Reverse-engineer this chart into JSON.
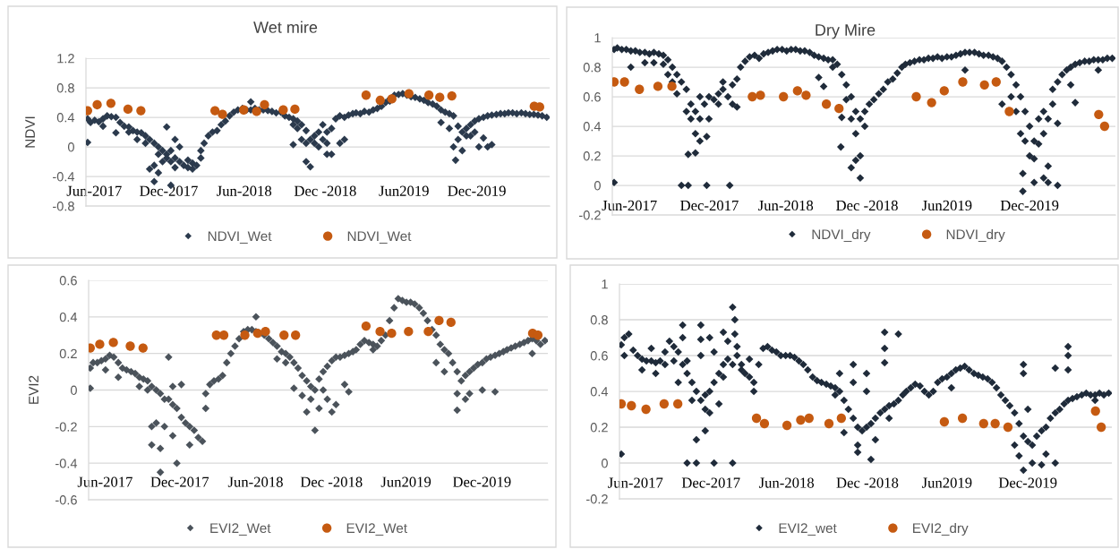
{
  "chart_data": [
    {
      "type": "scatter",
      "title": "Wet mire",
      "ylabel": "NDVI",
      "xlim": [
        "2017-05-21",
        "2020-06-08"
      ],
      "xticks": [
        {
          "value": "2017-06-10",
          "label": "Jun-2017"
        },
        {
          "value": "2017-12-06",
          "label": "Dec-2017"
        },
        {
          "value": "2018-06-05",
          "label": "Jun-2018"
        },
        {
          "value": "2018-12-17",
          "label": "Dec -2018"
        },
        {
          "value": "2019-06-24",
          "label": "Jun2019"
        },
        {
          "value": "2019-12-16",
          "label": "Dec-2019"
        }
      ],
      "ylim": [
        -0.8,
        1.2
      ],
      "yticks": [
        -0.8,
        -0.4,
        0,
        0.4,
        0.8,
        1.2
      ],
      "grid": "y",
      "legend": "bottom",
      "series": [
        {
          "name": "NDVI_Wet",
          "color": "#2b3a4d",
          "marker": "diamond",
          "x": [
            "2017-05-25",
            "2017-05-25",
            "2017-06-01",
            "2017-06-11",
            "2017-06-21",
            "2017-07-01",
            "2017-07-01",
            "2017-07-11",
            "2017-07-21",
            "2017-08-01",
            "2017-08-01",
            "2017-08-11",
            "2017-08-21",
            "2017-09-01",
            "2017-09-01",
            "2017-09-11",
            "2017-09-21",
            "2017-09-21",
            "2017-10-01",
            "2017-10-11",
            "2017-10-11",
            "2017-10-21",
            "2017-10-21",
            "2017-11-01",
            "2017-11-01",
            "2017-11-01",
            "2017-11-11",
            "2017-11-11",
            "2017-11-11",
            "2017-11-21",
            "2017-11-21",
            "2017-12-01",
            "2017-12-01",
            "2017-12-01",
            "2017-12-11",
            "2017-12-11",
            "2017-12-11",
            "2017-12-21",
            "2017-12-21",
            "2017-12-21",
            "2018-01-01",
            "2018-01-01",
            "2018-01-11",
            "2018-01-21",
            "2018-01-21",
            "2018-02-01",
            "2018-02-01",
            "2018-02-11",
            "2018-02-21",
            "2018-02-21",
            "2018-03-01",
            "2018-03-11",
            "2018-03-21",
            "2018-04-01",
            "2018-04-11",
            "2018-04-21",
            "2018-05-01",
            "2018-05-11",
            "2018-05-21",
            "2018-06-01",
            "2018-06-11",
            "2018-06-21",
            "2018-06-21",
            "2018-07-01",
            "2018-07-11",
            "2018-07-21",
            "2018-08-01",
            "2018-08-11",
            "2018-08-21",
            "2018-09-01",
            "2018-09-11",
            "2018-09-21",
            "2018-10-01",
            "2018-10-01",
            "2018-10-01",
            "2018-10-11",
            "2018-10-11",
            "2018-10-21",
            "2018-10-21",
            "2018-11-01",
            "2018-11-01",
            "2018-11-01",
            "2018-11-11",
            "2018-11-11",
            "2018-11-21",
            "2018-11-21",
            "2018-12-01",
            "2018-12-01",
            "2018-12-11",
            "2018-12-11",
            "2018-12-21",
            "2018-12-21",
            "2018-12-21",
            "2019-01-01",
            "2019-01-01",
            "2019-01-11",
            "2019-01-21",
            "2019-01-21",
            "2019-02-01",
            "2019-02-01",
            "2019-02-11",
            "2019-02-21",
            "2019-03-01",
            "2019-03-11",
            "2019-03-21",
            "2019-04-01",
            "2019-04-11",
            "2019-04-21",
            "2019-05-01",
            "2019-05-11",
            "2019-05-21",
            "2019-05-21",
            "2019-06-01",
            "2019-06-11",
            "2019-06-21",
            "2019-07-01",
            "2019-07-11",
            "2019-07-21",
            "2019-08-01",
            "2019-08-11",
            "2019-08-21",
            "2019-09-01",
            "2019-09-11",
            "2019-09-21",
            "2019-09-21",
            "2019-10-01",
            "2019-10-11",
            "2019-10-11",
            "2019-10-21",
            "2019-10-21",
            "2019-10-26",
            "2019-11-01",
            "2019-11-01",
            "2019-11-11",
            "2019-11-11",
            "2019-11-21",
            "2019-11-21",
            "2019-12-01",
            "2019-12-01",
            "2019-12-11",
            "2019-12-11",
            "2019-12-21",
            "2019-12-21",
            "2020-01-01",
            "2020-01-01",
            "2020-01-11",
            "2020-01-11",
            "2020-01-21",
            "2020-01-21",
            "2020-02-01",
            "2020-02-11",
            "2020-02-21",
            "2020-03-01",
            "2020-03-11",
            "2020-03-21",
            "2020-04-01",
            "2020-04-11",
            "2020-04-21",
            "2020-05-01",
            "2020-05-11",
            "2020-05-21",
            "2020-06-01"
          ],
          "values": [
            0.38,
            0.06,
            0.33,
            0.36,
            0.34,
            0.38,
            0.28,
            0.42,
            0.41,
            0.4,
            0.19,
            0.33,
            0.28,
            0.27,
            0.2,
            0.22,
            0.2,
            0.1,
            0.19,
            0.15,
            0.05,
            0.1,
            -0.3,
            0.05,
            -0.25,
            -0.47,
            0.0,
            -0.1,
            -0.35,
            -0.05,
            -0.2,
            -0.1,
            0.27,
            -0.15,
            -0.05,
            -0.2,
            -0.52,
            -0.15,
            0.1,
            -0.28,
            -0.2,
            0.0,
            -0.25,
            -0.28,
            -0.18,
            -0.3,
            -0.22,
            -0.25,
            -0.15,
            -0.05,
            0.05,
            0.15,
            0.2,
            0.22,
            0.3,
            0.35,
            0.42,
            0.47,
            0.5,
            0.52,
            0.5,
            0.5,
            0.61,
            0.52,
            0.5,
            0.5,
            0.49,
            0.48,
            0.46,
            0.47,
            0.42,
            0.4,
            0.38,
            0.03,
            0.3,
            0.35,
            0.25,
            0.3,
            0.1,
            0.22,
            -0.2,
            0.05,
            0.1,
            -0.27,
            0.05,
            0.15,
            0.2,
            0.0,
            0.3,
            0.1,
            0.2,
            -0.1,
            0.05,
            -0.1,
            0.25,
            0.38,
            0.05,
            0.42,
            0.1,
            0.4,
            0.43,
            0.45,
            0.46,
            0.45,
            0.48,
            0.47,
            0.5,
            0.52,
            0.55,
            0.6,
            0.65,
            0.62,
            0.7,
            0.71,
            0.72,
            0.7,
            0.68,
            0.67,
            0.65,
            0.63,
            0.6,
            0.58,
            0.55,
            0.5,
            0.33,
            0.47,
            0.45,
            0.25,
            0.42,
            0.0,
            -0.18,
            0.28,
            0.1,
            0.2,
            -0.05,
            0.15,
            0.25,
            0.3,
            0.15,
            0.35,
            0.2,
            0.38,
            0.0,
            0.4,
            0.12,
            0.42,
            0.0,
            0.43,
            0.03,
            0.44,
            0.45,
            0.45,
            0.46,
            0.46,
            0.45,
            0.46,
            0.45,
            0.44,
            0.44,
            0.43,
            0.42,
            0.4
          ]
        },
        {
          "name": "NDVI_Wet",
          "color": "#c55a11",
          "marker": "circle",
          "x": [
            "2017-05-25",
            "2017-06-17",
            "2017-07-20",
            "2017-08-30",
            "2017-09-30",
            "2018-03-27",
            "2018-04-14",
            "2018-06-04",
            "2018-07-05",
            "2018-07-24",
            "2018-09-07",
            "2018-10-05",
            "2019-03-25",
            "2019-04-28",
            "2019-05-26",
            "2019-07-06",
            "2019-08-23",
            "2019-09-18",
            "2019-10-17",
            "2020-05-02",
            "2020-05-15"
          ],
          "values": [
            0.49,
            0.57,
            0.59,
            0.51,
            0.49,
            0.49,
            0.44,
            0.5,
            0.48,
            0.57,
            0.5,
            0.51,
            0.7,
            0.63,
            0.65,
            0.72,
            0.7,
            0.67,
            0.69,
            0.55,
            0.54
          ]
        }
      ]
    },
    {
      "type": "scatter",
      "title": "Dry Mire",
      "xlim": [
        "2017-05-21",
        "2020-06-08"
      ],
      "xticks": [
        {
          "value": "2017-06-28",
          "label": "Jun-2017"
        },
        {
          "value": "2017-12-22",
          "label": "Dec-2017"
        },
        {
          "value": "2018-06-09",
          "label": "Jun-2018"
        },
        {
          "value": "2018-12-06",
          "label": "Dec -2018"
        },
        {
          "value": "2019-06-01",
          "label": "Jun2019"
        },
        {
          "value": "2019-12-01",
          "label": "Dec-2019"
        }
      ],
      "ylim": [
        -0.2,
        1
      ],
      "yticks": [
        -0.2,
        0,
        0.2,
        0.4,
        0.6,
        0.8,
        1
      ],
      "grid": "y",
      "legend": "bottom",
      "series": [
        {
          "name": "NDVI_dry",
          "color": "#1f2b3a",
          "marker": "diamond",
          "x": [
            "2017-05-25",
            "2017-05-25",
            "2017-06-01",
            "2017-06-11",
            "2017-06-21",
            "2017-07-01",
            "2017-07-01",
            "2017-07-11",
            "2017-07-21",
            "2017-08-01",
            "2017-08-01",
            "2017-08-11",
            "2017-08-21",
            "2017-08-21",
            "2017-09-01",
            "2017-09-11",
            "2017-09-11",
            "2017-09-21",
            "2017-09-21",
            "2017-10-01",
            "2017-10-01",
            "2017-10-11",
            "2017-10-11",
            "2017-10-21",
            "2017-10-21",
            "2017-11-01",
            "2017-11-01",
            "2017-11-05",
            "2017-11-05",
            "2017-11-11",
            "2017-11-11",
            "2017-11-21",
            "2017-11-21",
            "2017-11-21",
            "2017-12-01",
            "2017-12-01",
            "2017-12-01",
            "2017-12-11",
            "2017-12-16",
            "2017-12-16",
            "2017-12-21",
            "2017-12-21",
            "2018-01-01",
            "2018-01-11",
            "2018-01-11",
            "2018-01-21",
            "2018-01-21",
            "2018-02-01",
            "2018-02-05",
            "2018-02-11",
            "2018-02-11",
            "2018-02-21",
            "2018-02-21",
            "2018-03-01",
            "2018-03-11",
            "2018-03-21",
            "2018-04-01",
            "2018-04-11",
            "2018-04-21",
            "2018-05-01",
            "2018-05-11",
            "2018-05-21",
            "2018-06-01",
            "2018-06-11",
            "2018-06-21",
            "2018-07-01",
            "2018-07-11",
            "2018-07-21",
            "2018-08-01",
            "2018-08-11",
            "2018-08-21",
            "2018-08-21",
            "2018-09-01",
            "2018-09-01",
            "2018-09-11",
            "2018-09-21",
            "2018-09-21",
            "2018-10-01",
            "2018-10-09",
            "2018-10-11",
            "2018-10-11",
            "2018-10-21",
            "2018-10-21",
            "2018-11-01",
            "2018-11-01",
            "2018-11-01",
            "2018-11-11",
            "2018-11-11",
            "2018-11-11",
            "2018-11-21",
            "2018-11-21",
            "2018-11-21",
            "2018-12-01",
            "2018-12-01",
            "2018-12-11",
            "2018-12-21",
            "2019-01-01",
            "2019-01-11",
            "2019-01-21",
            "2019-02-01",
            "2019-02-11",
            "2019-02-21",
            "2019-03-01",
            "2019-03-11",
            "2019-03-21",
            "2019-04-01",
            "2019-04-11",
            "2019-04-21",
            "2019-05-01",
            "2019-05-11",
            "2019-05-21",
            "2019-06-01",
            "2019-06-11",
            "2019-06-21",
            "2019-07-01",
            "2019-07-11",
            "2019-07-11",
            "2019-07-21",
            "2019-08-01",
            "2019-08-11",
            "2019-08-21",
            "2019-09-01",
            "2019-09-11",
            "2019-09-21",
            "2019-10-01",
            "2019-10-01",
            "2019-10-11",
            "2019-10-21",
            "2019-10-21",
            "2019-11-01",
            "2019-11-01",
            "2019-11-11",
            "2019-11-11",
            "2019-11-16",
            "2019-11-16",
            "2019-11-21",
            "2019-11-21",
            "2019-12-01",
            "2019-12-01",
            "2019-12-11",
            "2019-12-11",
            "2019-12-11",
            "2019-12-21",
            "2019-12-21",
            "2020-01-01",
            "2020-01-01",
            "2020-01-01",
            "2020-01-11",
            "2020-01-11",
            "2020-01-11",
            "2020-01-21",
            "2020-01-21",
            "2020-02-01",
            "2020-02-01",
            "2020-02-01",
            "2020-02-11",
            "2020-02-21",
            "2020-03-01",
            "2020-03-01",
            "2020-03-11",
            "2020-03-11",
            "2020-03-21",
            "2020-04-01",
            "2020-04-11",
            "2020-04-21",
            "2020-05-01",
            "2020-05-01",
            "2020-05-11",
            "2020-05-21",
            "2020-06-01"
          ],
          "values": [
            0.92,
            0.02,
            0.93,
            0.92,
            0.92,
            0.91,
            0.8,
            0.91,
            0.9,
            0.9,
            0.83,
            0.89,
            0.9,
            0.83,
            0.89,
            0.88,
            0.82,
            0.85,
            0.75,
            0.8,
            0.7,
            0.75,
            0.62,
            0.7,
            0.0,
            0.65,
            0.5,
            0.21,
            0.0,
            0.55,
            0.45,
            0.5,
            0.35,
            0.22,
            0.45,
            0.3,
            0.6,
            0.55,
            0.0,
            0.33,
            0.6,
            0.45,
            0.58,
            0.62,
            0.55,
            0.65,
            0.7,
            0.6,
            0.0,
            0.55,
            0.68,
            0.53,
            0.72,
            0.8,
            0.84,
            0.87,
            0.88,
            0.86,
            0.89,
            0.9,
            0.91,
            0.92,
            0.92,
            0.91,
            0.92,
            0.92,
            0.91,
            0.91,
            0.9,
            0.88,
            0.87,
            0.73,
            0.86,
            0.67,
            0.85,
            0.85,
            0.8,
            0.82,
            0.26,
            0.75,
            0.46,
            0.68,
            0.58,
            0.6,
            0.12,
            0.45,
            0.5,
            0.17,
            0.35,
            0.45,
            0.2,
            0.05,
            0.5,
            0.4,
            0.55,
            0.58,
            0.62,
            0.65,
            0.7,
            0.72,
            0.76,
            0.8,
            0.82,
            0.83,
            0.84,
            0.85,
            0.85,
            0.86,
            0.86,
            0.87,
            0.86,
            0.87,
            0.87,
            0.88,
            0.89,
            0.9,
            0.78,
            0.9,
            0.9,
            0.89,
            0.88,
            0.88,
            0.87,
            0.86,
            0.84,
            0.55,
            0.8,
            0.75,
            0.6,
            0.68,
            0.5,
            0.6,
            0.35,
            0.08,
            -0.04,
            0.5,
            0.3,
            0.4,
            0.2,
            0.3,
            0.18,
            0.02,
            0.28,
            0.45,
            0.35,
            0.05,
            0.5,
            0.45,
            0.13,
            0.02,
            0.55,
            0.65,
            0.7,
            0.42,
            0.0,
            0.75,
            0.78,
            0.8,
            0.68,
            0.82,
            0.56,
            0.83,
            0.84,
            0.84,
            0.85,
            0.85,
            0.78,
            0.85,
            0.86,
            0.86
          ]
        },
        {
          "name": "NDVI_dry",
          "color": "#c55a11",
          "marker": "circle",
          "x": [
            "2017-05-25",
            "2017-06-17",
            "2017-07-20",
            "2017-08-30",
            "2017-09-30",
            "2018-03-27",
            "2018-04-14",
            "2018-06-04",
            "2018-07-05",
            "2018-07-24",
            "2018-09-07",
            "2018-10-05",
            "2019-03-25",
            "2019-04-28",
            "2019-05-26",
            "2019-07-06",
            "2019-08-23",
            "2019-09-18",
            "2019-10-17",
            "2020-05-02",
            "2020-05-15"
          ],
          "values": [
            0.7,
            0.7,
            0.65,
            0.67,
            0.67,
            0.6,
            0.61,
            0.6,
            0.64,
            0.61,
            0.55,
            0.52,
            0.6,
            0.56,
            0.64,
            0.7,
            0.68,
            0.7,
            0.5,
            0.48,
            0.4
          ]
        }
      ]
    },
    {
      "type": "scatter",
      "ylabel": "EVI2",
      "xlim": [
        "2017-05-21",
        "2020-06-08"
      ],
      "xticks": [
        {
          "value": "2017-06-30",
          "label": "Jun-2017"
        },
        {
          "value": "2017-12-28",
          "label": "Dec-2017"
        },
        {
          "value": "2018-06-30",
          "label": "Jun-2018"
        },
        {
          "value": "2018-12-31",
          "label": "Dec -2018"
        },
        {
          "value": "2019-06-30",
          "label": "Jun2019"
        },
        {
          "value": "2019-12-31",
          "label": "Dec-2019"
        }
      ],
      "ylim": [
        -0.6,
        0.6
      ],
      "yticks": [
        -0.6,
        -0.4,
        -0.2,
        0,
        0.2,
        0.4,
        0.6
      ],
      "grid": "y",
      "legend": "bottom",
      "series": [
        {
          "name": "EVI2_Wet",
          "color": "#4b535b",
          "marker": "diamond",
          "x": [
            "2017-05-25",
            "2017-05-25",
            "2017-06-01",
            "2017-06-11",
            "2017-06-21",
            "2017-07-01",
            "2017-07-01",
            "2017-07-11",
            "2017-07-21",
            "2017-08-01",
            "2017-08-01",
            "2017-08-11",
            "2017-08-21",
            "2017-09-01",
            "2017-09-11",
            "2017-09-21",
            "2017-09-21",
            "2017-10-01",
            "2017-10-11",
            "2017-10-11",
            "2017-10-21",
            "2017-10-21",
            "2017-10-21",
            "2017-11-01",
            "2017-11-01",
            "2017-11-11",
            "2017-11-11",
            "2017-11-11",
            "2017-11-21",
            "2017-11-21",
            "2017-12-01",
            "2017-12-01",
            "2017-12-11",
            "2017-12-11",
            "2017-12-11",
            "2017-12-21",
            "2017-12-21",
            "2018-01-01",
            "2018-01-01",
            "2018-01-11",
            "2018-01-21",
            "2018-01-21",
            "2018-02-01",
            "2018-02-11",
            "2018-02-21",
            "2018-03-01",
            "2018-03-01",
            "2018-03-11",
            "2018-03-21",
            "2018-04-01",
            "2018-04-11",
            "2018-04-21",
            "2018-05-01",
            "2018-05-11",
            "2018-05-21",
            "2018-06-01",
            "2018-06-11",
            "2018-06-21",
            "2018-07-01",
            "2018-07-01",
            "2018-07-21",
            "2018-08-01",
            "2018-08-11",
            "2018-08-21",
            "2018-08-21",
            "2018-09-01",
            "2018-09-11",
            "2018-09-11",
            "2018-09-21",
            "2018-10-01",
            "2018-10-01",
            "2018-10-11",
            "2018-10-21",
            "2018-10-21",
            "2018-11-01",
            "2018-11-01",
            "2018-11-11",
            "2018-11-11",
            "2018-11-21",
            "2018-11-21",
            "2018-12-01",
            "2018-12-01",
            "2018-12-11",
            "2018-12-11",
            "2018-12-21",
            "2018-12-21",
            "2019-01-01",
            "2019-01-01",
            "2019-01-11",
            "2019-01-11",
            "2019-01-21",
            "2019-02-01",
            "2019-02-01",
            "2019-02-11",
            "2019-02-11",
            "2019-02-21",
            "2019-03-01",
            "2019-03-11",
            "2019-03-21",
            "2019-04-01",
            "2019-04-11",
            "2019-04-11",
            "2019-04-21",
            "2019-05-01",
            "2019-05-11",
            "2019-05-21",
            "2019-06-01",
            "2019-06-11",
            "2019-06-21",
            "2019-07-01",
            "2019-07-11",
            "2019-07-21",
            "2019-08-01",
            "2019-08-11",
            "2019-08-21",
            "2019-09-01",
            "2019-09-11",
            "2019-09-11",
            "2019-09-21",
            "2019-10-01",
            "2019-10-01",
            "2019-10-11",
            "2019-10-21",
            "2019-11-01",
            "2019-11-01",
            "2019-11-01",
            "2019-11-11",
            "2019-11-21",
            "2019-11-21",
            "2019-12-01",
            "2019-12-01",
            "2019-12-11",
            "2019-12-21",
            "2020-01-01",
            "2020-01-01",
            "2020-01-11",
            "2020-01-21",
            "2020-02-01",
            "2020-02-01",
            "2020-02-11",
            "2020-02-21",
            "2020-03-01",
            "2020-03-11",
            "2020-03-21",
            "2020-04-01",
            "2020-04-11",
            "2020-04-21",
            "2020-05-01",
            "2020-05-01",
            "2020-05-11",
            "2020-05-21",
            "2020-06-01"
          ],
          "values": [
            0.12,
            0.01,
            0.15,
            0.15,
            0.16,
            0.17,
            0.11,
            0.19,
            0.18,
            0.15,
            0.07,
            0.12,
            0.11,
            0.1,
            0.09,
            0.07,
            0.02,
            0.06,
            0.05,
            0.0,
            0.02,
            -0.2,
            -0.3,
            0.0,
            -0.18,
            -0.02,
            -0.45,
            -0.32,
            -0.05,
            -0.2,
            -0.05,
            0.18,
            -0.08,
            0.02,
            -0.25,
            -0.1,
            -0.4,
            -0.15,
            0.03,
            -0.18,
            -0.2,
            -0.3,
            -0.22,
            -0.26,
            -0.28,
            -0.1,
            -0.02,
            0.03,
            0.05,
            0.06,
            0.08,
            0.15,
            0.2,
            0.24,
            0.28,
            0.32,
            0.33,
            0.33,
            0.32,
            0.4,
            0.3,
            0.28,
            0.26,
            0.24,
            0.17,
            0.21,
            0.2,
            0.15,
            0.18,
            0.15,
            0.01,
            0.12,
            0.08,
            -0.03,
            0.05,
            -0.12,
            0.02,
            -0.05,
            0.0,
            -0.22,
            0.06,
            -0.1,
            0.1,
            0.0,
            0.13,
            -0.05,
            0.16,
            -0.12,
            0.18,
            -0.08,
            0.18,
            0.19,
            0.03,
            0.2,
            -0.01,
            0.21,
            0.22,
            0.25,
            0.27,
            0.26,
            0.25,
            0.22,
            0.24,
            0.27,
            0.3,
            0.38,
            0.45,
            0.5,
            0.49,
            0.48,
            0.48,
            0.47,
            0.45,
            0.42,
            0.38,
            0.33,
            0.3,
            0.15,
            0.25,
            0.22,
            0.1,
            0.2,
            0.15,
            0.1,
            -0.02,
            -0.11,
            0.05,
            0.08,
            -0.05,
            0.1,
            -0.02,
            0.12,
            0.14,
            0.15,
            0.0,
            0.17,
            0.18,
            0.19,
            -0.01,
            0.2,
            0.21,
            0.22,
            0.23,
            0.24,
            0.25,
            0.26,
            0.27,
            0.28,
            0.2,
            0.27,
            0.25,
            0.27
          ]
        },
        {
          "name": "EVI2_Wet",
          "color": "#c55a11",
          "marker": "circle",
          "x": [
            "2017-05-25",
            "2017-06-17",
            "2017-07-20",
            "2017-08-30",
            "2017-09-30",
            "2018-03-27",
            "2018-04-14",
            "2018-06-04",
            "2018-07-05",
            "2018-07-24",
            "2018-09-07",
            "2018-10-05",
            "2019-03-25",
            "2019-04-28",
            "2019-05-26",
            "2019-07-06",
            "2019-08-23",
            "2019-09-18",
            "2019-10-17",
            "2020-05-02",
            "2020-05-15"
          ],
          "values": [
            0.23,
            0.25,
            0.26,
            0.24,
            0.23,
            0.3,
            0.3,
            0.3,
            0.31,
            0.32,
            0.3,
            0.3,
            0.35,
            0.32,
            0.31,
            0.32,
            0.32,
            0.38,
            0.37,
            0.31,
            0.3
          ]
        }
      ]
    },
    {
      "type": "scatter",
      "xlim": [
        "2017-05-21",
        "2020-06-08"
      ],
      "xticks": [
        {
          "value": "2017-06-26",
          "label": "Jun-2017"
        },
        {
          "value": "2017-12-14",
          "label": "Dec-2017"
        },
        {
          "value": "2018-06-03",
          "label": "Jun-2018"
        },
        {
          "value": "2018-12-03",
          "label": "Dec -2018"
        },
        {
          "value": "2019-06-01",
          "label": "Jun2019"
        },
        {
          "value": "2019-12-01",
          "label": "Dec-2019"
        }
      ],
      "ylim": [
        -0.2,
        1
      ],
      "yticks": [
        -0.2,
        0,
        0.2,
        0.4,
        0.6,
        0.8,
        1
      ],
      "grid": "y",
      "legend": "bottom",
      "series": [
        {
          "name": "EVI2_wet",
          "color": "#1f2b3a",
          "marker": "diamond",
          "x": [
            "2017-05-25",
            "2017-05-25",
            "2017-06-01",
            "2017-06-01",
            "2017-06-11",
            "2017-06-21",
            "2017-07-01",
            "2017-07-11",
            "2017-07-11",
            "2017-07-21",
            "2017-08-01",
            "2017-08-01",
            "2017-08-11",
            "2017-08-11",
            "2017-08-21",
            "2017-09-01",
            "2017-09-01",
            "2017-09-11",
            "2017-09-21",
            "2017-09-21",
            "2017-10-01",
            "2017-10-01",
            "2017-10-11",
            "2017-10-11",
            "2017-10-11",
            "2017-10-21",
            "2017-10-21",
            "2017-10-21",
            "2017-11-01",
            "2017-11-01",
            "2017-11-11",
            "2017-11-11",
            "2017-11-11",
            "2017-11-21",
            "2017-11-21",
            "2017-11-21",
            "2017-11-21",
            "2017-12-01",
            "2017-12-01",
            "2017-12-01",
            "2017-12-11",
            "2017-12-11",
            "2017-12-11",
            "2017-12-21",
            "2017-12-21",
            "2017-12-21",
            "2018-01-01",
            "2018-01-01",
            "2018-01-11",
            "2018-01-11",
            "2018-01-11",
            "2018-01-21",
            "2018-01-21",
            "2018-02-01",
            "2018-02-01",
            "2018-02-01",
            "2018-02-06",
            "2018-02-06",
            "2018-02-11",
            "2018-02-11",
            "2018-02-21",
            "2018-02-21",
            "2018-03-01",
            "2018-03-11",
            "2018-03-11",
            "2018-03-21",
            "2018-03-21",
            "2018-04-01",
            "2018-04-11",
            "2018-04-21",
            "2018-05-01",
            "2018-05-11",
            "2018-05-21",
            "2018-06-01",
            "2018-06-11",
            "2018-06-21",
            "2018-07-01",
            "2018-07-11",
            "2018-07-21",
            "2018-08-01",
            "2018-08-11",
            "2018-08-21",
            "2018-09-01",
            "2018-09-11",
            "2018-09-21",
            "2018-09-21",
            "2018-10-01",
            "2018-10-01",
            "2018-10-11",
            "2018-10-11",
            "2018-10-21",
            "2018-11-01",
            "2018-11-01",
            "2018-11-01",
            "2018-11-11",
            "2018-11-11",
            "2018-11-11",
            "2018-11-21",
            "2018-12-01",
            "2018-12-01",
            "2018-12-01",
            "2018-12-11",
            "2018-12-11",
            "2018-12-21",
            "2018-12-21",
            "2019-01-01",
            "2019-01-11",
            "2019-01-11",
            "2019-01-11",
            "2019-01-11",
            "2019-01-21",
            "2019-01-21",
            "2019-02-01",
            "2019-02-11",
            "2019-02-11",
            "2019-02-21",
            "2019-03-01",
            "2019-03-11",
            "2019-03-21",
            "2019-04-01",
            "2019-04-11",
            "2019-04-21",
            "2019-05-01",
            "2019-05-11",
            "2019-05-21",
            "2019-06-01",
            "2019-06-11",
            "2019-06-11",
            "2019-06-21",
            "2019-07-01",
            "2019-07-11",
            "2019-07-21",
            "2019-08-01",
            "2019-08-11",
            "2019-08-21",
            "2019-09-01",
            "2019-09-11",
            "2019-09-21",
            "2019-10-01",
            "2019-10-11",
            "2019-10-21",
            "2019-11-01",
            "2019-11-01",
            "2019-11-11",
            "2019-11-11",
            "2019-11-21",
            "2019-11-21",
            "2019-11-21",
            "2019-11-21",
            "2019-12-01",
            "2019-12-01",
            "2019-12-11",
            "2019-12-11",
            "2019-12-21",
            "2020-01-01",
            "2020-01-01",
            "2020-01-11",
            "2020-01-11",
            "2020-01-21",
            "2020-02-01",
            "2020-02-01",
            "2020-02-01",
            "2020-02-11",
            "2020-02-21",
            "2020-03-01",
            "2020-03-01",
            "2020-03-01",
            "2020-03-01",
            "2020-03-11",
            "2020-03-21",
            "2020-04-01",
            "2020-04-11",
            "2020-04-21",
            "2020-05-01",
            "2020-05-01",
            "2020-05-11",
            "2020-05-21",
            "2020-06-01"
          ],
          "values": [
            0.66,
            0.05,
            0.7,
            0.6,
            0.72,
            0.63,
            0.6,
            0.58,
            0.52,
            0.57,
            0.57,
            0.64,
            0.56,
            0.5,
            0.57,
            0.62,
            0.55,
            0.68,
            0.65,
            0.57,
            0.62,
            0.45,
            0.55,
            0.77,
            0.7,
            0.5,
            0.0,
            0.57,
            0.45,
            0.35,
            0.4,
            0.13,
            0.0,
            0.35,
            0.77,
            0.69,
            0.6,
            0.38,
            0.18,
            0.3,
            0.4,
            0.7,
            0.28,
            0.45,
            0.0,
            0.62,
            0.5,
            0.33,
            0.55,
            0.73,
            0.48,
            0.58,
            0.68,
            0.55,
            0.87,
            0.0,
            0.8,
            0.72,
            0.6,
            0.65,
            0.55,
            0.52,
            0.5,
            0.48,
            0.58,
            0.45,
            0.4,
            0.55,
            0.64,
            0.65,
            0.63,
            0.62,
            0.6,
            0.6,
            0.6,
            0.59,
            0.57,
            0.55,
            0.52,
            0.48,
            0.46,
            0.45,
            0.44,
            0.43,
            0.42,
            0.38,
            0.4,
            0.5,
            0.35,
            0.17,
            0.3,
            0.25,
            0.55,
            0.45,
            0.2,
            0.06,
            0.1,
            0.18,
            0.2,
            0.5,
            0.4,
            0.22,
            0.02,
            0.25,
            0.13,
            0.28,
            0.3,
            0.73,
            0.64,
            0.56,
            0.32,
            0.25,
            0.33,
            0.35,
            0.72,
            0.38,
            0.4,
            0.42,
            0.44,
            0.43,
            0.4,
            0.38,
            0.4,
            0.45,
            0.47,
            0.48,
            0.5,
            0.42,
            0.52,
            0.53,
            0.54,
            0.52,
            0.5,
            0.49,
            0.48,
            0.47,
            0.45,
            0.42,
            0.38,
            0.35,
            0.32,
            0.28,
            0.1,
            0.22,
            0.04,
            0.15,
            -0.04,
            0.55,
            0.5,
            0.12,
            0.3,
            0.1,
            0.0,
            0.15,
            0.18,
            -0.01,
            0.2,
            0.05,
            0.25,
            0.28,
            0.0,
            0.53,
            0.3,
            0.33,
            0.35,
            0.65,
            0.6,
            0.52,
            0.36,
            0.37,
            0.38,
            0.39,
            0.38,
            0.38,
            0.35,
            0.39,
            0.38,
            0.39
          ]
        },
        {
          "name": "EVI2_dry",
          "color": "#c55a11",
          "marker": "circle",
          "x": [
            "2017-05-25",
            "2017-06-17",
            "2017-07-20",
            "2017-08-30",
            "2017-09-30",
            "2018-03-27",
            "2018-04-14",
            "2018-06-04",
            "2018-07-05",
            "2018-07-24",
            "2018-09-07",
            "2018-10-05",
            "2019-05-26",
            "2019-07-06",
            "2019-08-23",
            "2019-09-18",
            "2019-10-17",
            "2020-05-02",
            "2020-05-15"
          ],
          "values": [
            0.33,
            0.32,
            0.3,
            0.33,
            0.33,
            0.25,
            0.22,
            0.21,
            0.24,
            0.25,
            0.22,
            0.25,
            0.23,
            0.25,
            0.22,
            0.22,
            0.2,
            0.29,
            0.2
          ]
        }
      ]
    }
  ]
}
